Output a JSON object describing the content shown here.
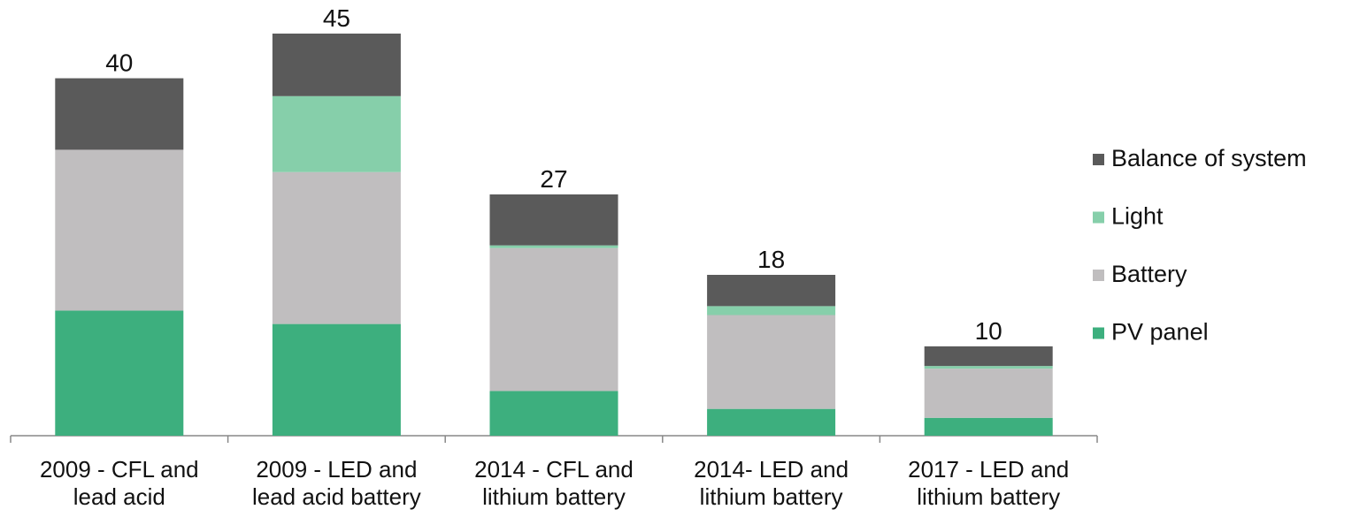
{
  "chart_data": {
    "type": "stacked_bar",
    "categories": [
      "2009 - CFL and\nlead acid",
      "2009 - LED and\nlead acid battery",
      "2014 - CFL and\nlithium battery",
      "2014- LED and\nlithium battery",
      "2017 - LED and\nlithium battery"
    ],
    "series": [
      {
        "name": "PV panel",
        "color": "#3daf7e",
        "values": [
          14,
          12.5,
          5,
          3,
          2
        ]
      },
      {
        "name": "Battery",
        "color": "#c0bebf",
        "values": [
          18,
          17,
          16,
          10.5,
          5.5
        ]
      },
      {
        "name": "Light",
        "color": "#86cfaa",
        "values": [
          0,
          8.5,
          0.3,
          1,
          0.3
        ]
      },
      {
        "name": "Balance of system",
        "color": "#5a5a5a",
        "values": [
          8,
          7,
          5.7,
          3.5,
          2.2
        ]
      }
    ],
    "totals": [
      40,
      45,
      27,
      18,
      10
    ],
    "ylim": [
      0,
      45
    ],
    "legend": "right"
  }
}
